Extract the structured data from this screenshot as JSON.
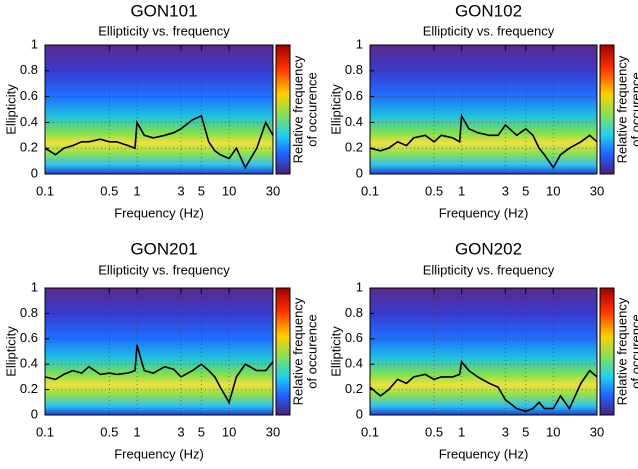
{
  "chart_data": [
    {
      "type": "line",
      "title": "GON101",
      "subtitle": "Ellipticity vs. frequency",
      "xlabel": "Frequency (Hz)",
      "ylabel": "Ellipticity",
      "colorbar_label": [
        "Relative frequency",
        "of occurence"
      ],
      "x": [
        0.1,
        0.13,
        0.16,
        0.2,
        0.25,
        0.3,
        0.4,
        0.5,
        0.6,
        0.8,
        0.95,
        1,
        1.2,
        1.5,
        2,
        2.5,
        3,
        4,
        5,
        6,
        7,
        8,
        10,
        12,
        15,
        20,
        25,
        30
      ],
      "values": [
        0.2,
        0.15,
        0.2,
        0.22,
        0.25,
        0.25,
        0.27,
        0.25,
        0.25,
        0.22,
        0.2,
        0.4,
        0.3,
        0.28,
        0.3,
        0.32,
        0.35,
        0.42,
        0.45,
        0.25,
        0.18,
        0.15,
        0.12,
        0.2,
        0.05,
        0.2,
        0.4,
        0.3
      ],
      "color": "#000000",
      "log_x": true,
      "grid": true,
      "xlim": [
        0.1,
        30
      ],
      "ylim": [
        0,
        1
      ],
      "xticks": [
        0.1,
        0.5,
        1,
        3,
        5,
        10,
        30
      ],
      "yticks": [
        0,
        0.2,
        0.4,
        0.6,
        0.8,
        1
      ]
    },
    {
      "type": "line",
      "title": "GON102",
      "subtitle": "Ellipticity vs. frequency",
      "xlabel": "Frequency (Hz)",
      "ylabel": "Ellipticity",
      "colorbar_label": [
        "Relative frequency",
        "of occurence"
      ],
      "x": [
        0.1,
        0.13,
        0.16,
        0.2,
        0.25,
        0.3,
        0.4,
        0.5,
        0.6,
        0.8,
        0.95,
        1,
        1.2,
        1.5,
        2,
        2.5,
        3,
        4,
        5,
        6,
        7,
        8,
        10,
        12,
        15,
        20,
        25,
        30
      ],
      "values": [
        0.2,
        0.18,
        0.2,
        0.25,
        0.22,
        0.28,
        0.3,
        0.25,
        0.3,
        0.28,
        0.25,
        0.45,
        0.35,
        0.32,
        0.3,
        0.3,
        0.38,
        0.3,
        0.35,
        0.3,
        0.2,
        0.15,
        0.05,
        0.15,
        0.2,
        0.25,
        0.3,
        0.25
      ],
      "color": "#000000",
      "log_x": true,
      "grid": true,
      "xlim": [
        0.1,
        30
      ],
      "ylim": [
        0,
        1
      ],
      "xticks": [
        0.1,
        0.5,
        1,
        3,
        5,
        10,
        30
      ],
      "yticks": [
        0,
        0.2,
        0.4,
        0.6,
        0.8,
        1
      ]
    },
    {
      "type": "line",
      "title": "GON201",
      "subtitle": "Ellipticity vs. frequency",
      "xlabel": "Frequency (Hz)",
      "ylabel": "Ellipticity",
      "colorbar_label": [
        "Relative frequency",
        "of occurence"
      ],
      "x": [
        0.1,
        0.13,
        0.16,
        0.2,
        0.25,
        0.3,
        0.4,
        0.5,
        0.6,
        0.8,
        0.95,
        1,
        1.2,
        1.5,
        2,
        2.5,
        3,
        4,
        5,
        6,
        7,
        8,
        10,
        12,
        15,
        20,
        25,
        30
      ],
      "values": [
        0.3,
        0.28,
        0.32,
        0.35,
        0.33,
        0.38,
        0.32,
        0.33,
        0.32,
        0.33,
        0.35,
        0.55,
        0.35,
        0.33,
        0.38,
        0.36,
        0.3,
        0.35,
        0.4,
        0.35,
        0.3,
        0.22,
        0.1,
        0.3,
        0.4,
        0.35,
        0.35,
        0.42
      ],
      "color": "#000000",
      "log_x": true,
      "grid": true,
      "xlim": [
        0.1,
        30
      ],
      "ylim": [
        0,
        1
      ],
      "xticks": [
        0.1,
        0.5,
        1,
        3,
        5,
        10,
        30
      ],
      "yticks": [
        0,
        0.2,
        0.4,
        0.6,
        0.8,
        1
      ]
    },
    {
      "type": "line",
      "title": "GON202",
      "subtitle": "Ellipticity vs. frequency",
      "xlabel": "Frequency (Hz)",
      "ylabel": "Ellipticity",
      "colorbar_label": [
        "Relative frequency",
        "of occurence"
      ],
      "x": [
        0.1,
        0.13,
        0.16,
        0.2,
        0.25,
        0.3,
        0.4,
        0.5,
        0.6,
        0.8,
        0.95,
        1,
        1.2,
        1.5,
        2,
        2.5,
        3,
        4,
        5,
        6,
        7,
        8,
        10,
        12,
        15,
        20,
        25,
        30
      ],
      "values": [
        0.22,
        0.15,
        0.2,
        0.28,
        0.25,
        0.3,
        0.32,
        0.28,
        0.3,
        0.3,
        0.32,
        0.42,
        0.35,
        0.3,
        0.25,
        0.22,
        0.12,
        0.05,
        0.03,
        0.05,
        0.1,
        0.05,
        0.05,
        0.15,
        0.05,
        0.25,
        0.35,
        0.3
      ],
      "color": "#000000",
      "log_x": true,
      "grid": true,
      "xlim": [
        0.1,
        30
      ],
      "ylim": [
        0,
        1
      ],
      "xticks": [
        0.1,
        0.5,
        1,
        3,
        5,
        10,
        30
      ],
      "yticks": [
        0,
        0.2,
        0.4,
        0.6,
        0.8,
        1
      ]
    }
  ]
}
